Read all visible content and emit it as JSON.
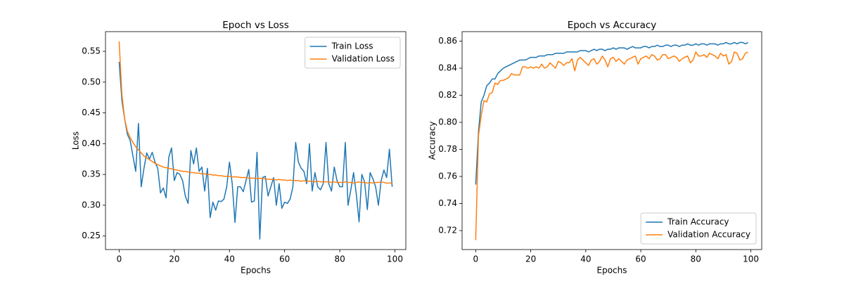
{
  "chart_data": [
    {
      "type": "line",
      "title": "Epoch vs Loss",
      "xlabel": "Epochs",
      "ylabel": "Loss",
      "x": [
        0,
        1,
        2,
        3,
        4,
        5,
        6,
        7,
        8,
        9,
        10,
        11,
        12,
        13,
        14,
        15,
        16,
        17,
        18,
        19,
        20,
        21,
        22,
        23,
        24,
        25,
        26,
        27,
        28,
        29,
        30,
        31,
        32,
        33,
        34,
        35,
        36,
        37,
        38,
        39,
        40,
        41,
        42,
        43,
        44,
        45,
        46,
        47,
        48,
        49,
        50,
        51,
        52,
        53,
        54,
        55,
        56,
        57,
        58,
        59,
        60,
        61,
        62,
        63,
        64,
        65,
        66,
        67,
        68,
        69,
        70,
        71,
        72,
        73,
        74,
        75,
        76,
        77,
        78,
        79,
        80,
        81,
        82,
        83,
        84,
        85,
        86,
        87,
        88,
        89,
        90,
        91,
        92,
        93,
        94,
        95,
        96,
        97,
        98,
        99
      ],
      "series": [
        {
          "name": "Train Loss",
          "color": "#1f77b4",
          "values": [
            0.533,
            0.47,
            0.44,
            0.415,
            0.405,
            0.38,
            0.355,
            0.433,
            0.33,
            0.36,
            0.385,
            0.375,
            0.386,
            0.37,
            0.36,
            0.32,
            0.328,
            0.312,
            0.378,
            0.393,
            0.34,
            0.353,
            0.35,
            0.34,
            0.315,
            0.303,
            0.389,
            0.367,
            0.393,
            0.355,
            0.362,
            0.323,
            0.36,
            0.28,
            0.305,
            0.292,
            0.307,
            0.306,
            0.31,
            0.33,
            0.37,
            0.335,
            0.272,
            0.33,
            0.33,
            0.322,
            0.34,
            0.358,
            0.305,
            0.307,
            0.386,
            0.245,
            0.345,
            0.347,
            0.315,
            0.33,
            0.345,
            0.3,
            0.335,
            0.295,
            0.305,
            0.303,
            0.31,
            0.33,
            0.402,
            0.37,
            0.36,
            0.355,
            0.335,
            0.4,
            0.323,
            0.353,
            0.33,
            0.325,
            0.335,
            0.402,
            0.335,
            0.323,
            0.362,
            0.34,
            0.33,
            0.33,
            0.402,
            0.3,
            0.325,
            0.353,
            0.318,
            0.273,
            0.35,
            0.338,
            0.293,
            0.353,
            0.343,
            0.33,
            0.3,
            0.34,
            0.357,
            0.345,
            0.391,
            0.33
          ]
        },
        {
          "name": "Validation Loss",
          "color": "#ff7f0e",
          "values": [
            0.566,
            0.48,
            0.44,
            0.42,
            0.41,
            0.402,
            0.395,
            0.39,
            0.385,
            0.38,
            0.377,
            0.374,
            0.371,
            0.368,
            0.366,
            0.364,
            0.362,
            0.361,
            0.36,
            0.359,
            0.358,
            0.357,
            0.356,
            0.355,
            0.355,
            0.354,
            0.353,
            0.353,
            0.352,
            0.352,
            0.351,
            0.351,
            0.35,
            0.35,
            0.349,
            0.349,
            0.348,
            0.348,
            0.347,
            0.347,
            0.347,
            0.346,
            0.346,
            0.346,
            0.345,
            0.345,
            0.345,
            0.344,
            0.344,
            0.344,
            0.343,
            0.344,
            0.343,
            0.343,
            0.342,
            0.342,
            0.342,
            0.341,
            0.342,
            0.341,
            0.341,
            0.34,
            0.341,
            0.34,
            0.34,
            0.34,
            0.339,
            0.34,
            0.339,
            0.339,
            0.339,
            0.338,
            0.339,
            0.338,
            0.338,
            0.338,
            0.338,
            0.337,
            0.338,
            0.337,
            0.337,
            0.337,
            0.338,
            0.337,
            0.337,
            0.336,
            0.337,
            0.338,
            0.337,
            0.337,
            0.336,
            0.337,
            0.336,
            0.337,
            0.337,
            0.338,
            0.337,
            0.336,
            0.336,
            0.336
          ]
        }
      ],
      "xlim": [
        -4.95,
        103.95
      ],
      "xticks": [
        0,
        20,
        40,
        60,
        80,
        100
      ],
      "ylim": [
        0.228,
        0.582
      ],
      "yticks": [
        {
          "value": 0.25,
          "label": "0.25"
        },
        {
          "value": 0.3,
          "label": "0.30"
        },
        {
          "value": 0.35,
          "label": "0.35"
        },
        {
          "value": 0.4,
          "label": "0.40"
        },
        {
          "value": 0.45,
          "label": "0.45"
        },
        {
          "value": 0.5,
          "label": "0.50"
        },
        {
          "value": 0.55,
          "label": "0.55"
        }
      ],
      "legend": "upper right"
    },
    {
      "type": "line",
      "title": "Epoch vs Accuracy",
      "xlabel": "Epochs",
      "ylabel": "Accuracy",
      "x": [
        0,
        1,
        2,
        3,
        4,
        5,
        6,
        7,
        8,
        9,
        10,
        11,
        12,
        13,
        14,
        15,
        16,
        17,
        18,
        19,
        20,
        21,
        22,
        23,
        24,
        25,
        26,
        27,
        28,
        29,
        30,
        31,
        32,
        33,
        34,
        35,
        36,
        37,
        38,
        39,
        40,
        41,
        42,
        43,
        44,
        45,
        46,
        47,
        48,
        49,
        50,
        51,
        52,
        53,
        54,
        55,
        56,
        57,
        58,
        59,
        60,
        61,
        62,
        63,
        64,
        65,
        66,
        67,
        68,
        69,
        70,
        71,
        72,
        73,
        74,
        75,
        76,
        77,
        78,
        79,
        80,
        81,
        82,
        83,
        84,
        85,
        86,
        87,
        88,
        89,
        90,
        91,
        92,
        93,
        94,
        95,
        96,
        97,
        98,
        99
      ],
      "series": [
        {
          "name": "Train Accuracy",
          "color": "#1f77b4",
          "values": [
            0.754,
            0.793,
            0.815,
            0.82,
            0.827,
            0.829,
            0.832,
            0.832,
            0.836,
            0.838,
            0.84,
            0.841,
            0.842,
            0.843,
            0.844,
            0.845,
            0.846,
            0.846,
            0.846,
            0.847,
            0.848,
            0.848,
            0.848,
            0.849,
            0.849,
            0.849,
            0.85,
            0.85,
            0.85,
            0.851,
            0.851,
            0.851,
            0.851,
            0.852,
            0.852,
            0.852,
            0.852,
            0.852,
            0.853,
            0.853,
            0.853,
            0.852,
            0.853,
            0.854,
            0.853,
            0.854,
            0.854,
            0.853,
            0.854,
            0.854,
            0.855,
            0.854,
            0.855,
            0.855,
            0.855,
            0.854,
            0.855,
            0.856,
            0.855,
            0.855,
            0.855,
            0.856,
            0.856,
            0.855,
            0.856,
            0.856,
            0.857,
            0.856,
            0.856,
            0.857,
            0.857,
            0.856,
            0.857,
            0.857,
            0.856,
            0.857,
            0.857,
            0.858,
            0.857,
            0.857,
            0.858,
            0.857,
            0.858,
            0.858,
            0.857,
            0.858,
            0.858,
            0.858,
            0.857,
            0.858,
            0.858,
            0.859,
            0.858,
            0.858,
            0.859,
            0.858,
            0.859,
            0.859,
            0.858,
            0.859
          ]
        },
        {
          "name": "Validation Accuracy",
          "color": "#ff7f0e",
          "values": [
            0.713,
            0.79,
            0.805,
            0.816,
            0.815,
            0.821,
            0.822,
            0.829,
            0.828,
            0.831,
            0.831,
            0.832,
            0.833,
            0.836,
            0.835,
            0.835,
            0.835,
            0.841,
            0.841,
            0.84,
            0.841,
            0.84,
            0.841,
            0.84,
            0.843,
            0.84,
            0.841,
            0.844,
            0.842,
            0.84,
            0.845,
            0.844,
            0.842,
            0.844,
            0.844,
            0.847,
            0.838,
            0.846,
            0.848,
            0.846,
            0.844,
            0.842,
            0.846,
            0.847,
            0.843,
            0.845,
            0.849,
            0.846,
            0.841,
            0.847,
            0.848,
            0.845,
            0.847,
            0.845,
            0.843,
            0.846,
            0.847,
            0.848,
            0.849,
            0.843,
            0.847,
            0.848,
            0.849,
            0.847,
            0.85,
            0.849,
            0.846,
            0.847,
            0.85,
            0.85,
            0.847,
            0.848,
            0.849,
            0.848,
            0.845,
            0.847,
            0.848,
            0.849,
            0.844,
            0.846,
            0.852,
            0.849,
            0.849,
            0.85,
            0.848,
            0.851,
            0.85,
            0.849,
            0.847,
            0.851,
            0.849,
            0.85,
            0.843,
            0.845,
            0.852,
            0.851,
            0.846,
            0.847,
            0.851,
            0.852
          ]
        }
      ],
      "xlim": [
        -4.95,
        103.95
      ],
      "xticks": [
        0,
        20,
        40,
        60,
        80,
        100
      ],
      "ylim": [
        0.706,
        0.867
      ],
      "yticks": [
        {
          "value": 0.72,
          "label": "0.72"
        },
        {
          "value": 0.74,
          "label": "0.74"
        },
        {
          "value": 0.76,
          "label": "0.76"
        },
        {
          "value": 0.78,
          "label": "0.78"
        },
        {
          "value": 0.8,
          "label": "0.80"
        },
        {
          "value": 0.82,
          "label": "0.82"
        },
        {
          "value": 0.84,
          "label": "0.84"
        },
        {
          "value": 0.86,
          "label": "0.86"
        }
      ],
      "legend": "lower right"
    }
  ]
}
